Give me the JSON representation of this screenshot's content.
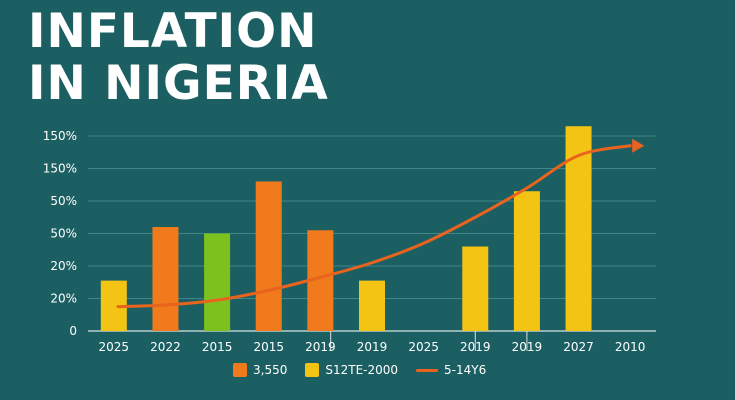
{
  "title_lines": [
    "INFLATION",
    "IN NIGERIA"
  ],
  "colors": {
    "background": "#1c5f63",
    "orange": "#f07a1c",
    "yellow": "#f4c414",
    "green": "#7cc11e",
    "trend": "#e8641e",
    "grid": "#3f8589"
  },
  "chart_data": {
    "type": "bar",
    "ytick_labels": [
      "0",
      "20%",
      "20%",
      "50%",
      "50%",
      "150%",
      "150%"
    ],
    "ylim": [
      0,
      6
    ],
    "categories": [
      "2025",
      "2022",
      "2015",
      "2015",
      "2019",
      "2019",
      "2025",
      "2019",
      "2019",
      "2027",
      "2010"
    ],
    "bars": [
      {
        "category": "2025",
        "value": 1.55,
        "color": "yellow"
      },
      {
        "category": "2022",
        "value": 3.2,
        "color": "orange"
      },
      {
        "category": "2015",
        "value": 3.0,
        "color": "green"
      },
      {
        "category": "2015",
        "value": 4.6,
        "color": "orange"
      },
      {
        "category": "2019",
        "value": 3.1,
        "color": "orange"
      },
      {
        "category": "2019",
        "value": 1.55,
        "color": "yellow"
      },
      {
        "category": "2025",
        "value": null,
        "color": "yellow"
      },
      {
        "category": "2019",
        "value": 2.6,
        "color": "yellow"
      },
      {
        "category": "2019",
        "value": 4.3,
        "color": "yellow"
      },
      {
        "category": "2027",
        "value": 6.3,
        "color": "yellow"
      },
      {
        "category": "2010",
        "value": null,
        "color": "yellow"
      }
    ],
    "trend_line": {
      "color": "trend",
      "x_positions": [
        0,
        1,
        2,
        3,
        4,
        5,
        6,
        7,
        8,
        9,
        10
      ],
      "values": [
        0.75,
        0.8,
        0.95,
        1.25,
        1.65,
        2.1,
        2.7,
        3.5,
        4.4,
        5.4,
        5.7
      ]
    },
    "legend": [
      {
        "label": "3,550",
        "type": "bar",
        "color": "orange"
      },
      {
        "label": "S12TE-2000",
        "type": "bar",
        "color": "yellow"
      },
      {
        "label": "5-14Y6",
        "type": "line",
        "color": "trend"
      }
    ]
  }
}
